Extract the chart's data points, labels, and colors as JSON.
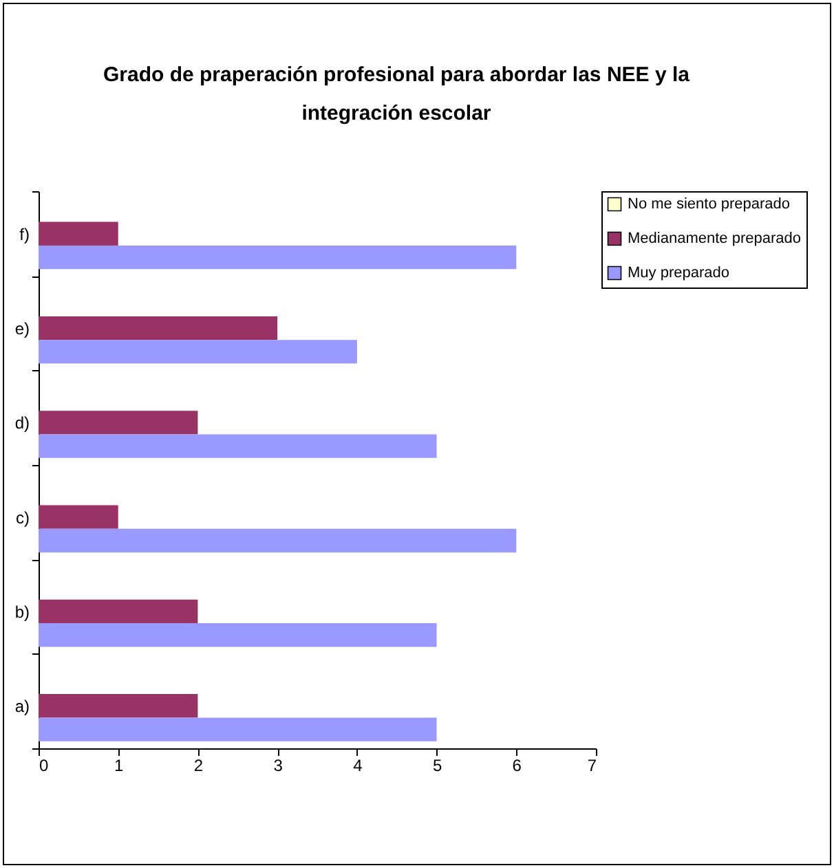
{
  "chart_data": {
    "type": "bar",
    "orientation": "horizontal",
    "title": "Grado de praperación profesional para abordar las NEE y la integración escolar",
    "categories": [
      "f)",
      "e)",
      "d)",
      "c)",
      "b)",
      "a)"
    ],
    "series": [
      {
        "name": "No me siento preparado",
        "color": "#ffffcc",
        "values": [
          0,
          0,
          0,
          0,
          0,
          0
        ]
      },
      {
        "name": "Medianamente preparado",
        "color": "#993366",
        "values": [
          1,
          3,
          2,
          1,
          2,
          2
        ]
      },
      {
        "name": "Muy preparado",
        "color": "#9999ff",
        "values": [
          6,
          4,
          5,
          6,
          5,
          5
        ]
      }
    ],
    "xlim": [
      0,
      7
    ],
    "xticks": [
      0,
      1,
      2,
      3,
      4,
      5,
      6,
      7
    ],
    "grid": false,
    "legend": "right"
  }
}
